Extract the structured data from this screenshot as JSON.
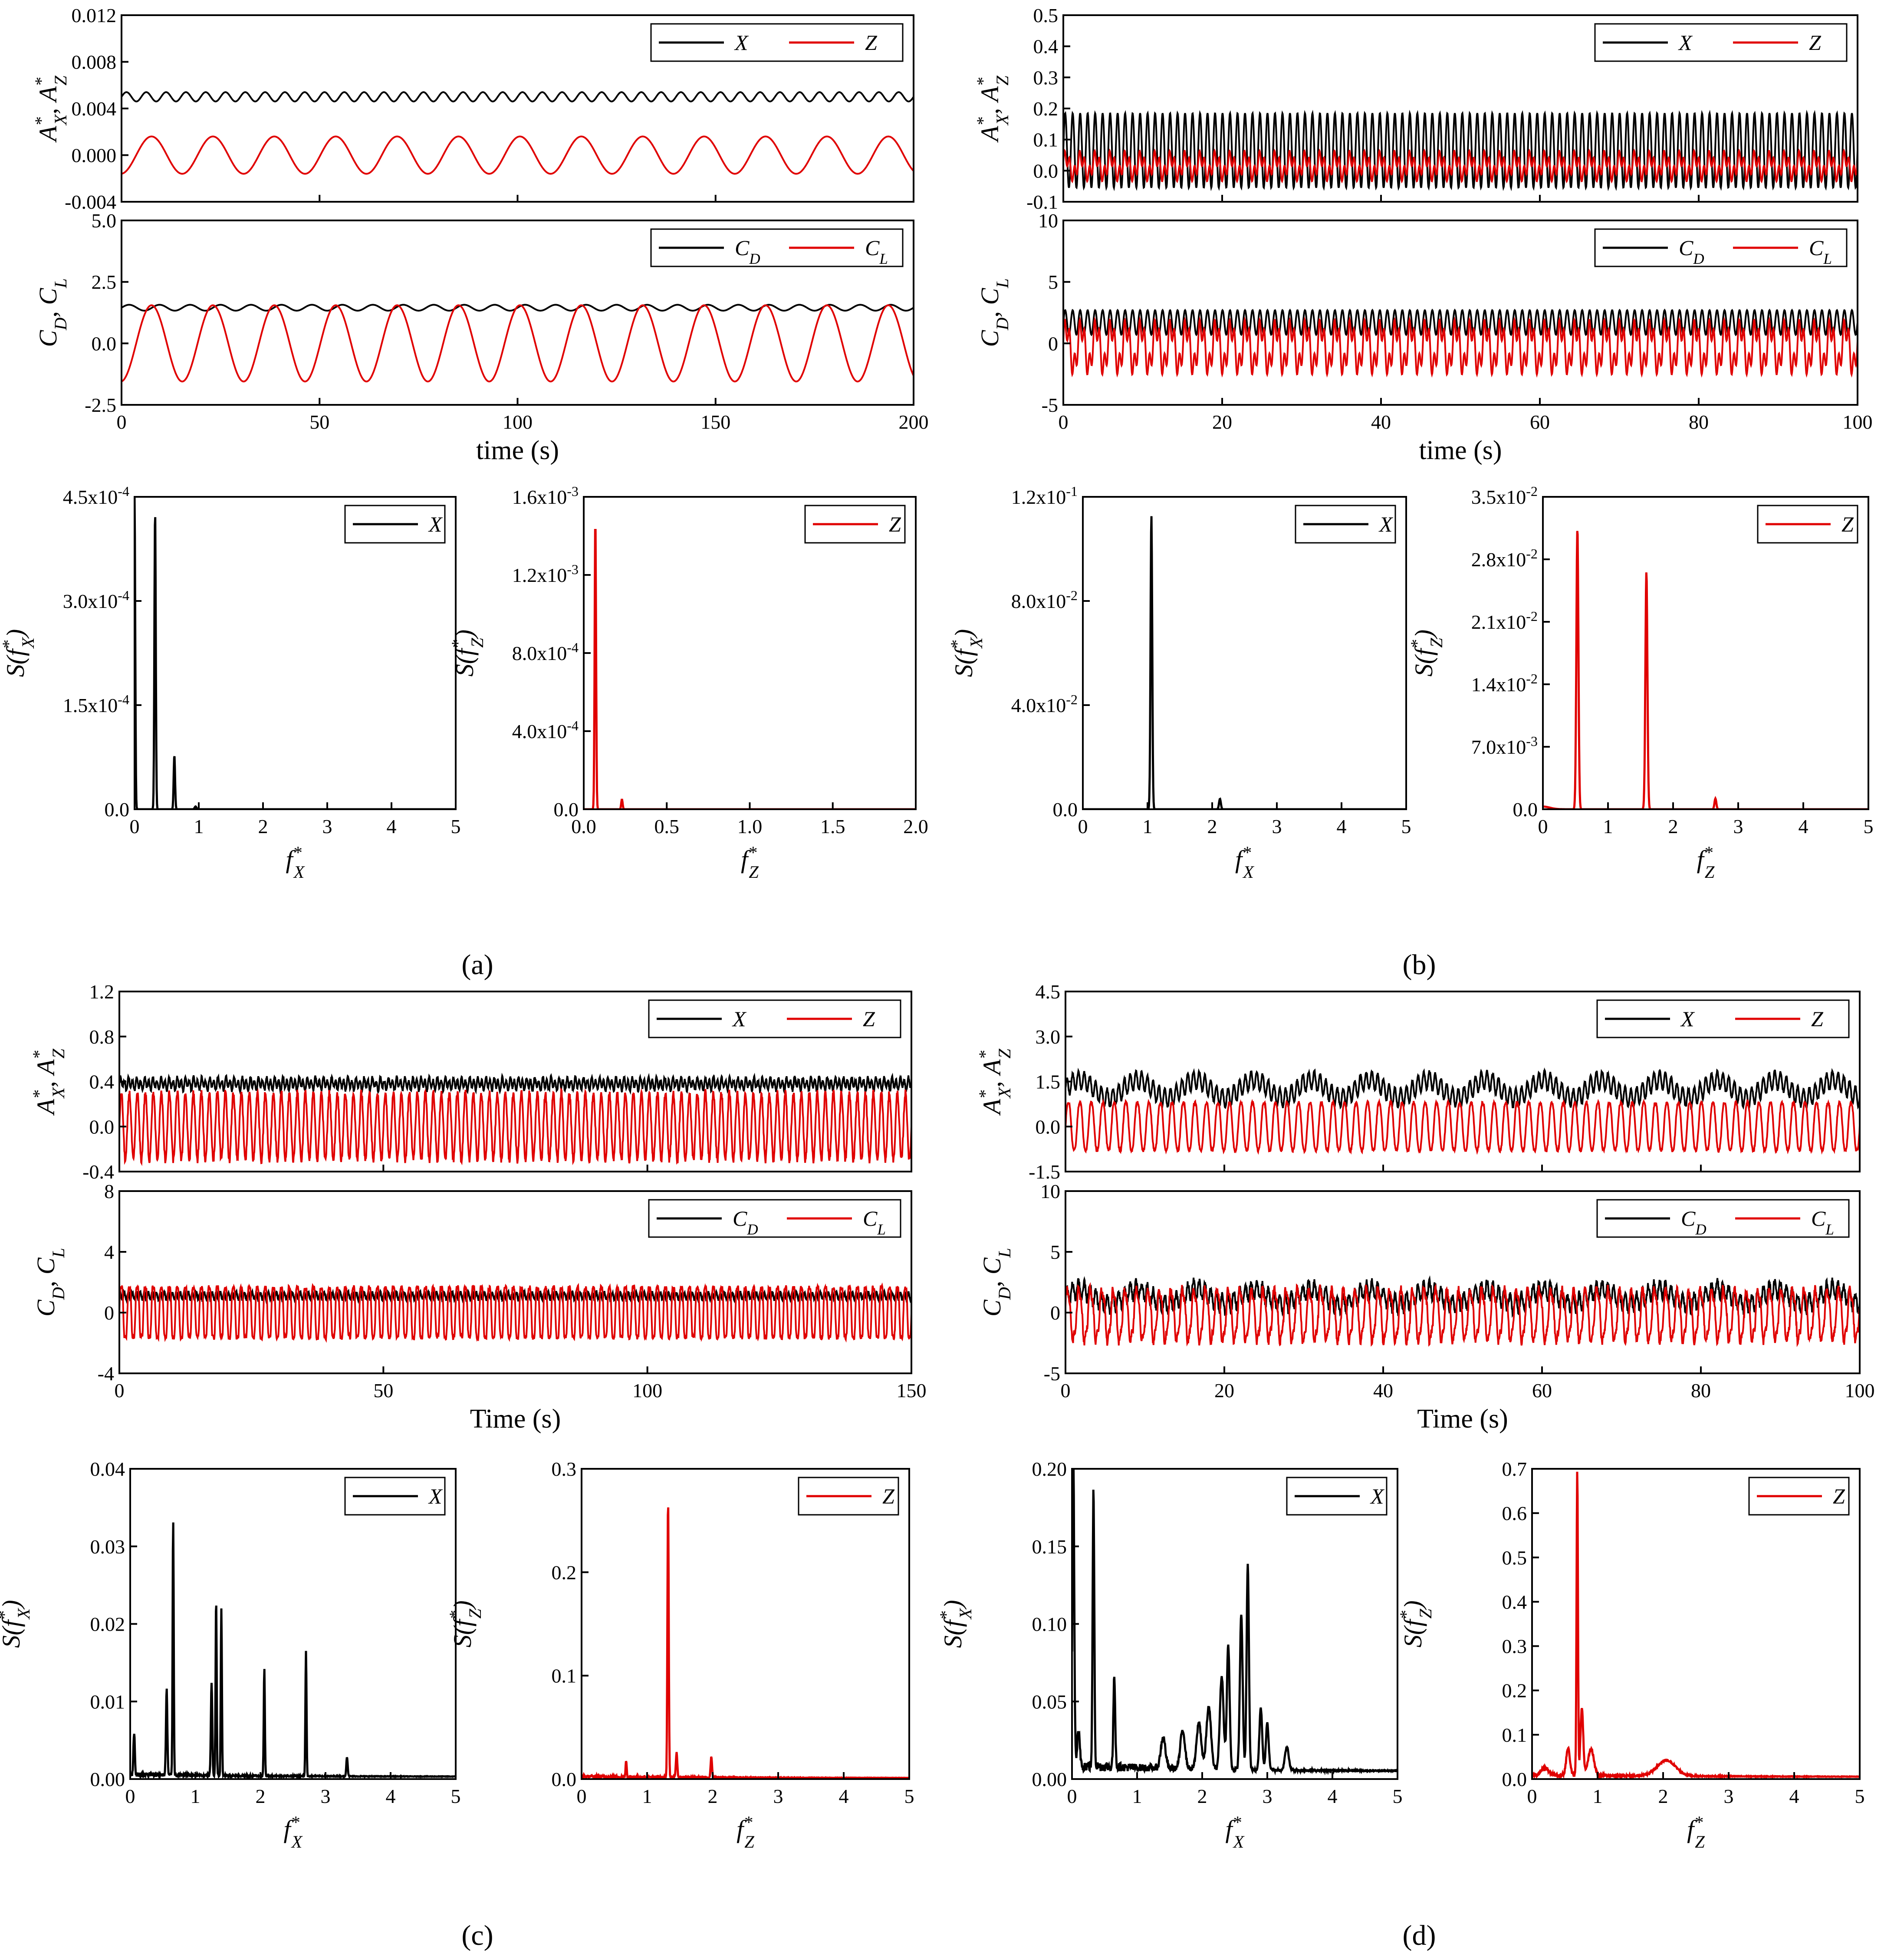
{
  "colors": {
    "x_series": "#000000",
    "z_series": "#e00000"
  },
  "panel_labels": [
    "(a)",
    "(b)",
    "(c)",
    "(d)"
  ],
  "chart_data": [
    {
      "id": "a-amp",
      "type": "line",
      "xlabel": "",
      "ylabel": "A*X, A*Z",
      "xlim": [
        0,
        200
      ],
      "ylim": [
        -0.004,
        0.012
      ],
      "yticks": [
        -0.004,
        0.0,
        0.004,
        0.008,
        0.012
      ],
      "ytick_labels": [
        "-0.004",
        "0.000",
        "0.004",
        "0.008",
        "0.012"
      ],
      "xticks": [
        0,
        50,
        100,
        150,
        200
      ],
      "xtick_labels": [],
      "legend": [
        "X",
        "Z"
      ],
      "series": [
        {
          "name": "X",
          "kind": "sine",
          "mean": 0.005,
          "amp": 0.0004,
          "freq": 0.2,
          "phase": 0,
          "minor": 0
        },
        {
          "name": "Z",
          "kind": "sine",
          "mean": 0.0,
          "amp": 0.0016,
          "freq": 0.0645,
          "phase": -1.5,
          "minor": 0
        }
      ]
    },
    {
      "id": "a-force",
      "type": "line",
      "xlabel": "time (s)",
      "ylabel": "CD, CL",
      "xlim": [
        0,
        200
      ],
      "ylim": [
        -2.5,
        5.0
      ],
      "yticks": [
        -2.5,
        0.0,
        2.5,
        5.0
      ],
      "ytick_labels": [
        "-2.5",
        "0.0",
        "2.5",
        "5.0"
      ],
      "xticks": [
        0,
        50,
        100,
        150,
        200
      ],
      "xtick_labels": [
        "0",
        "50",
        "100",
        "150",
        "200"
      ],
      "legend": [
        "CD",
        "CL"
      ],
      "series": [
        {
          "name": "CD",
          "kind": "sine",
          "mean": 1.45,
          "amp": 0.12,
          "freq": 0.13,
          "phase": 0,
          "minor": 0
        },
        {
          "name": "CL",
          "kind": "sine",
          "mean": 0.0,
          "amp": 1.55,
          "freq": 0.0645,
          "phase": -1.5,
          "minor": 0
        }
      ]
    },
    {
      "id": "a-spec-x",
      "type": "line",
      "xlabel": "f*X",
      "ylabel": "S(f*X)",
      "xlim": [
        0,
        5
      ],
      "ylim": [
        0,
        0.00045
      ],
      "yticks": [
        0,
        0.00015,
        0.0003,
        0.00045
      ],
      "ytick_labels": [
        "0.0",
        "1.5x10^-4",
        "3.0x10^-4",
        "4.5x10^-4"
      ],
      "xticks": [
        0,
        1,
        2,
        3,
        4,
        5
      ],
      "xtick_labels": [
        "0",
        "1",
        "2",
        "3",
        "4",
        "5"
      ],
      "legend": [
        "X"
      ],
      "series": [
        {
          "name": "X",
          "kind": "peaks",
          "base": 0.0,
          "noise": 0.0,
          "peaks": [
            [
              0.0,
              0.00045,
              0.015
            ],
            [
              0.32,
              0.00043,
              0.015
            ],
            [
              0.62,
              7.8e-05,
              0.015
            ],
            [
              0.95,
              4e-06,
              0.02
            ]
          ]
        }
      ]
    },
    {
      "id": "a-spec-z",
      "type": "line",
      "xlabel": "f*Z",
      "ylabel": "S(f*Z)",
      "xlim": [
        0,
        2.0
      ],
      "ylim": [
        0,
        0.0016
      ],
      "yticks": [
        0,
        0.0004,
        0.0008,
        0.0012,
        0.0016
      ],
      "ytick_labels": [
        "0.0",
        "4.0x10^-4",
        "8.0x10^-4",
        "1.2x10^-3",
        "1.6x10^-3"
      ],
      "xticks": [
        0,
        0.5,
        1.0,
        1.5,
        2.0
      ],
      "xtick_labels": [
        "0.0",
        "0.5",
        "1.0",
        "1.5",
        "2.0"
      ],
      "legend": [
        "Z"
      ],
      "series": [
        {
          "name": "Z",
          "kind": "peaks",
          "base": 0.0,
          "noise": 0.0,
          "peaks": [
            [
              0.07,
              0.00148,
              0.006
            ],
            [
              0.23,
              5e-05,
              0.006
            ]
          ]
        }
      ]
    },
    {
      "id": "b-amp",
      "type": "line",
      "xlabel": "",
      "ylabel": "A*X, A*Z",
      "xlim": [
        0,
        100
      ],
      "ylim": [
        -0.1,
        0.5
      ],
      "yticks": [
        -0.1,
        0.0,
        0.1,
        0.2,
        0.3,
        0.4,
        0.5
      ],
      "ytick_labels": [
        "-0.1",
        "0.0",
        "0.1",
        "0.2",
        "0.3",
        "0.4",
        "0.5"
      ],
      "xticks": [
        0,
        20,
        40,
        60,
        80,
        100
      ],
      "xtick_labels": [],
      "legend": [
        "X",
        "Z"
      ],
      "series": [
        {
          "name": "X",
          "kind": "sine",
          "mean": 0.065,
          "amp": 0.12,
          "freq": 1.06,
          "phase": 0,
          "minor": 0
        },
        {
          "name": "Z",
          "kind": "sine",
          "mean": 0.015,
          "amp": 0.028,
          "freq": 0.53,
          "phase": 0.5,
          "minor": 0.025,
          "minor_freq": 1.59
        }
      ]
    },
    {
      "id": "b-force",
      "type": "line",
      "xlabel": "time (s)",
      "ylabel": "CD, CL",
      "xlim": [
        0,
        100
      ],
      "ylim": [
        -5,
        10
      ],
      "yticks": [
        -5,
        0,
        5,
        10
      ],
      "ytick_labels": [
        "-5",
        "0",
        "5",
        "10"
      ],
      "xticks": [
        0,
        20,
        40,
        60,
        80,
        100
      ],
      "xtick_labels": [
        "0",
        "20",
        "40",
        "60",
        "80",
        "100"
      ],
      "legend": [
        "CD",
        "CL"
      ],
      "series": [
        {
          "name": "CD",
          "kind": "sine",
          "mean": 1.7,
          "amp": 1.0,
          "freq": 1.06,
          "phase": 0,
          "minor": 0
        },
        {
          "name": "CL",
          "kind": "sine",
          "mean": -0.3,
          "amp": 1.6,
          "freq": 0.53,
          "phase": 0.3,
          "minor": 1.0,
          "minor_freq": 1.59
        }
      ]
    },
    {
      "id": "b-spec-x",
      "type": "line",
      "xlabel": "f*X",
      "ylabel": "S(f*X)",
      "xlim": [
        0,
        5
      ],
      "ylim": [
        0,
        0.12
      ],
      "yticks": [
        0,
        0.04,
        0.08,
        0.12
      ],
      "ytick_labels": [
        "0.0",
        "4.0x10^-2",
        "8.0x10^-2",
        "1.2x10^-1"
      ],
      "xticks": [
        0,
        1,
        2,
        3,
        4,
        5
      ],
      "xtick_labels": [
        "0",
        "1",
        "2",
        "3",
        "4",
        "5"
      ],
      "legend": [
        "X"
      ],
      "series": [
        {
          "name": "X",
          "kind": "peaks",
          "base": 0.0,
          "noise": 0.0,
          "peaks": [
            [
              1.06,
              0.113,
              0.018
            ],
            [
              2.12,
              0.004,
              0.02
            ]
          ]
        }
      ]
    },
    {
      "id": "b-spec-z",
      "type": "line",
      "xlabel": "f*Z",
      "ylabel": "S(f*Z)",
      "xlim": [
        0,
        5
      ],
      "ylim": [
        0,
        0.035
      ],
      "yticks": [
        0,
        0.007,
        0.014,
        0.021,
        0.028,
        0.035
      ],
      "ytick_labels": [
        "0.0",
        "7.0x10^-3",
        "1.4x10^-2",
        "2.1x10^-2",
        "2.8x10^-2",
        "3.5x10^-2"
      ],
      "xticks": [
        0,
        1,
        2,
        3,
        4,
        5
      ],
      "xtick_labels": [
        "0",
        "1",
        "2",
        "3",
        "4",
        "5"
      ],
      "legend": [
        "Z"
      ],
      "series": [
        {
          "name": "Z",
          "kind": "peaks",
          "base": 0.0,
          "noise": 0.0,
          "peaks": [
            [
              0.0,
              0.0003,
              0.15
            ],
            [
              0.53,
              0.0315,
              0.022
            ],
            [
              1.59,
              0.0266,
              0.022
            ],
            [
              2.65,
              0.0012,
              0.02
            ]
          ]
        }
      ]
    },
    {
      "id": "c-amp",
      "type": "line",
      "xlabel": "",
      "ylabel": "A*X, A*Z",
      "xlim": [
        0,
        150
      ],
      "ylim": [
        -0.4,
        1.2
      ],
      "yticks": [
        -0.4,
        0.0,
        0.4,
        0.8,
        1.2
      ],
      "ytick_labels": [
        "-0.4",
        "0.0",
        "0.4",
        "0.8",
        "1.2"
      ],
      "xticks": [
        0,
        50,
        100,
        150
      ],
      "xtick_labels": [],
      "legend": [
        "X",
        "Z"
      ],
      "series": [
        {
          "name": "X",
          "kind": "sine",
          "mean": 0.38,
          "amp": 0.045,
          "freq": 1.3,
          "phase": 0,
          "minor": 0.02,
          "minor_freq": 0.65,
          "noise": 0.015
        },
        {
          "name": "Z",
          "kind": "sine",
          "mean": 0.0,
          "amp": 0.3,
          "freq": 0.66,
          "phase": 0,
          "minor": 0,
          "noise": 0.03
        }
      ]
    },
    {
      "id": "c-force",
      "type": "line",
      "xlabel": "Time (s)",
      "ylabel": "CD, CL",
      "xlim": [
        0,
        150
      ],
      "ylim": [
        -4,
        8
      ],
      "yticks": [
        -4,
        0,
        4,
        8
      ],
      "ytick_labels": [
        "-4",
        "0",
        "4",
        "8"
      ],
      "xticks": [
        0,
        50,
        100,
        150
      ],
      "xtick_labels": [
        "0",
        "50",
        "100",
        "150"
      ],
      "legend": [
        "CD",
        "CL"
      ],
      "series": [
        {
          "name": "CD",
          "kind": "sine",
          "mean": 1.1,
          "amp": 0.25,
          "freq": 1.32,
          "phase": 0,
          "minor": 0,
          "noise": 0.08
        },
        {
          "name": "CL",
          "kind": "sine",
          "mean": 0.0,
          "amp": 1.9,
          "freq": 0.66,
          "phase": 0,
          "minor": 0.3,
          "minor_freq": 1.98,
          "noise": 0.15
        }
      ]
    },
    {
      "id": "c-spec-x",
      "type": "line",
      "xlabel": "f*X",
      "ylabel": "S(f*X)",
      "xlim": [
        0,
        5
      ],
      "ylim": [
        0,
        0.04
      ],
      "yticks": [
        0,
        0.01,
        0.02,
        0.03,
        0.04
      ],
      "ytick_labels": [
        "0.00",
        "0.01",
        "0.02",
        "0.03",
        "0.04"
      ],
      "xticks": [
        0,
        1,
        2,
        3,
        4,
        5
      ],
      "xtick_labels": [
        "0",
        "1",
        "2",
        "3",
        "4",
        "5"
      ],
      "legend": [
        "X"
      ],
      "series": [
        {
          "name": "X",
          "kind": "peaks",
          "base": 0.0003,
          "noise": 0.0006,
          "peaks": [
            [
              0.06,
              0.0055,
              0.015
            ],
            [
              0.56,
              0.011,
              0.015
            ],
            [
              0.66,
              0.033,
              0.012
            ],
            [
              1.25,
              0.012,
              0.015
            ],
            [
              1.32,
              0.0227,
              0.012
            ],
            [
              1.4,
              0.0215,
              0.012
            ],
            [
              2.06,
              0.0138,
              0.012
            ],
            [
              2.7,
              0.0162,
              0.012
            ],
            [
              3.33,
              0.0025,
              0.015
            ]
          ]
        }
      ]
    },
    {
      "id": "c-spec-z",
      "type": "line",
      "xlabel": "f*Z",
      "ylabel": "S(f*Z)",
      "xlim": [
        0,
        5
      ],
      "ylim": [
        0,
        0.3
      ],
      "yticks": [
        0,
        0.1,
        0.2,
        0.3
      ],
      "ytick_labels": [
        "0.0",
        "0.1",
        "0.2",
        "0.3"
      ],
      "xticks": [
        0,
        1,
        2,
        3,
        4,
        5
      ],
      "xtick_labels": [
        "0",
        "1",
        "2",
        "3",
        "4",
        "5"
      ],
      "legend": [
        "Z"
      ],
      "series": [
        {
          "name": "Z",
          "kind": "peaks",
          "base": 0.001,
          "noise": 0.003,
          "peaks": [
            [
              0.68,
              0.016,
              0.012
            ],
            [
              1.32,
              0.268,
              0.014
            ],
            [
              1.45,
              0.024,
              0.015
            ],
            [
              1.98,
              0.02,
              0.015
            ]
          ]
        }
      ]
    },
    {
      "id": "d-amp",
      "type": "line",
      "xlabel": "",
      "ylabel": "A*X, A*Z",
      "xlim": [
        0,
        100
      ],
      "ylim": [
        -1.5,
        4.5
      ],
      "yticks": [
        -1.5,
        0.0,
        1.5,
        3.0,
        4.5
      ],
      "ytick_labels": [
        "-1.5",
        "0.0",
        "1.5",
        "3.0",
        "4.5"
      ],
      "xticks": [
        0,
        20,
        40,
        60,
        80,
        100
      ],
      "xtick_labels": [],
      "legend": [
        "X",
        "Z"
      ],
      "series": [
        {
          "name": "X",
          "kind": "sine",
          "mean": 1.25,
          "amp": 0.3,
          "freq": 1.38,
          "phase": 0,
          "minor": 0.3,
          "minor_freq": 0.137,
          "noise": 0.05
        },
        {
          "name": "Z",
          "kind": "sine",
          "mean": 0.0,
          "amp": 0.85,
          "freq": 0.69,
          "phase": 0,
          "minor": 0.05,
          "minor_freq": 2.07,
          "noise": 0.05
        }
      ]
    },
    {
      "id": "d-force",
      "type": "line",
      "xlabel": "Time (s)",
      "ylabel": "CD, CL",
      "xlim": [
        0,
        100
      ],
      "ylim": [
        -5,
        10
      ],
      "yticks": [
        -5,
        0,
        5,
        10
      ],
      "ytick_labels": [
        "-5",
        "0",
        "5",
        "10"
      ],
      "xticks": [
        0,
        20,
        40,
        60,
        80,
        100
      ],
      "xtick_labels": [
        "0",
        "20",
        "40",
        "60",
        "80",
        "100"
      ],
      "legend": [
        "CD",
        "CL"
      ],
      "series": [
        {
          "name": "CD",
          "kind": "sine",
          "mean": 1.3,
          "amp": 0.7,
          "freq": 1.38,
          "phase": 0,
          "minor": 0.6,
          "minor_freq": 0.137,
          "noise": 0.3
        },
        {
          "name": "CL",
          "kind": "sine",
          "mean": -0.2,
          "amp": 2.1,
          "freq": 0.69,
          "phase": 0.4,
          "minor": 0.4,
          "minor_freq": 2.07,
          "noise": 0.3
        }
      ]
    },
    {
      "id": "d-spec-x",
      "type": "line",
      "xlabel": "f*X",
      "ylabel": "S(f*X)",
      "xlim": [
        0,
        5
      ],
      "ylim": [
        0,
        0.2
      ],
      "yticks": [
        0,
        0.05,
        0.1,
        0.15,
        0.2
      ],
      "ytick_labels": [
        "0.00",
        "0.05",
        "0.10",
        "0.15",
        "0.20"
      ],
      "xticks": [
        0,
        1,
        2,
        3,
        4,
        5
      ],
      "xtick_labels": [
        "0",
        "1",
        "2",
        "3",
        "4",
        "5"
      ],
      "legend": [
        "X"
      ],
      "series": [
        {
          "name": "X",
          "kind": "peaks",
          "base": 0.005,
          "noise": 0.008,
          "peaks": [
            [
              0.02,
              0.2,
              0.02
            ],
            [
              0.1,
              0.02,
              0.03
            ],
            [
              0.33,
              0.178,
              0.018
            ],
            [
              0.65,
              0.058,
              0.02
            ],
            [
              1.4,
              0.02,
              0.05
            ],
            [
              1.7,
              0.025,
              0.05
            ],
            [
              1.95,
              0.03,
              0.05
            ],
            [
              2.1,
              0.04,
              0.05
            ],
            [
              2.3,
              0.06,
              0.04
            ],
            [
              2.4,
              0.08,
              0.03
            ],
            [
              2.6,
              0.1,
              0.03
            ],
            [
              2.7,
              0.132,
              0.025
            ],
            [
              2.9,
              0.04,
              0.03
            ],
            [
              3.0,
              0.03,
              0.03
            ],
            [
              3.3,
              0.015,
              0.04
            ]
          ]
        }
      ]
    },
    {
      "id": "d-spec-z",
      "type": "line",
      "xlabel": "f*Z",
      "ylabel": "S(f*Z)",
      "xlim": [
        0,
        5
      ],
      "ylim": [
        0,
        0.7
      ],
      "yticks": [
        0,
        0.1,
        0.2,
        0.3,
        0.4,
        0.5,
        0.6,
        0.7
      ],
      "ytick_labels": [
        "0.0",
        "0.1",
        "0.2",
        "0.3",
        "0.4",
        "0.5",
        "0.6",
        "0.7"
      ],
      "xticks": [
        0,
        1,
        2,
        3,
        4,
        5
      ],
      "xtick_labels": [
        "0",
        "1",
        "2",
        "3",
        "4",
        "5"
      ],
      "legend": [
        "Z"
      ],
      "series": [
        {
          "name": "Z",
          "kind": "peaks",
          "base": 0.005,
          "noise": 0.01,
          "peaks": [
            [
              0.2,
              0.015,
              0.08
            ],
            [
              0.55,
              0.06,
              0.04
            ],
            [
              0.69,
              0.688,
              0.015
            ],
            [
              0.76,
              0.15,
              0.03
            ],
            [
              0.9,
              0.06,
              0.06
            ],
            [
              2.05,
              0.035,
              0.2
            ]
          ]
        }
      ]
    }
  ]
}
